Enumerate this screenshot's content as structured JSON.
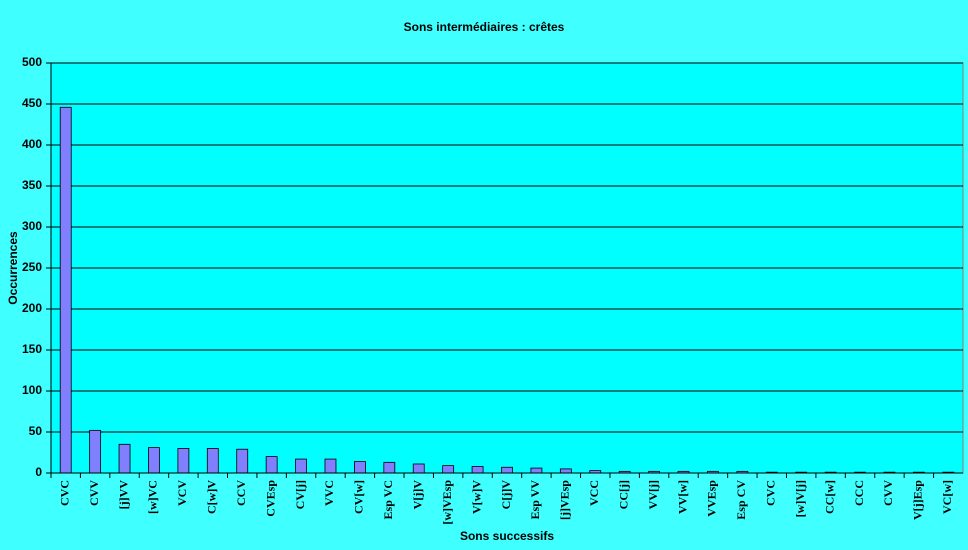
{
  "chart_data": {
    "type": "bar",
    "title": "Sons intermédiaires : crêtes",
    "x_label": "Sons successifs",
    "y_label": "Occurrences",
    "categories": [
      "CVC",
      "CVV",
      "[j]VV",
      "[w]VC",
      "VCV",
      "C[w]V",
      "CCV",
      "CVEsp",
      "CV[j]",
      "VVC",
      "CV[w]",
      "Esp VC",
      "V[j]V",
      "[w]VEsp",
      "V[w]V",
      "C[j]V",
      "Esp VV",
      "[j]VEsp",
      "VCC",
      "CC[j]",
      "VV[j]",
      "VV[w]",
      "VVEsp",
      "Esp CV",
      "CVC",
      "[w]V[j]",
      "CC[w]",
      "CCC",
      "CVV",
      "V[j]Esp",
      "VC[w]"
    ],
    "values": [
      446,
      52,
      35,
      31,
      30,
      30,
      29,
      20,
      17,
      17,
      14,
      13,
      11,
      9,
      8,
      7,
      6,
      5,
      3,
      2,
      2,
      2,
      2,
      2,
      1,
      1,
      1,
      1,
      1,
      1,
      1
    ],
    "color": "#8080ff",
    "ylim": [
      0,
      500
    ],
    "yticks": [
      0,
      50,
      100,
      150,
      200,
      250,
      300,
      350,
      400,
      450,
      500
    ],
    "grid": true
  }
}
